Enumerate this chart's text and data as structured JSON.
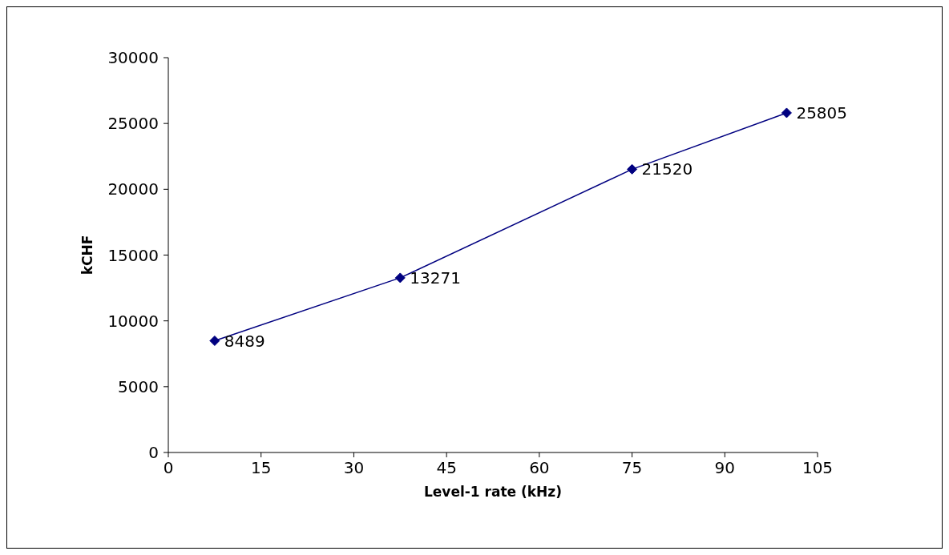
{
  "chart_data": {
    "type": "line",
    "xlabel": "Level-1 rate (kHz)",
    "ylabel": "kCHF",
    "x": [
      7.5,
      37.5,
      75,
      100
    ],
    "series": [
      {
        "color": "#000080",
        "values": [
          8489,
          13271,
          21520,
          25805
        ]
      }
    ],
    "xlim": [
      0,
      105
    ],
    "xticks": [
      0,
      15,
      30,
      45,
      60,
      75,
      90,
      105
    ],
    "ylim": [
      0,
      30000
    ],
    "yticks": [
      0,
      5000,
      10000,
      15000,
      20000,
      25000,
      30000
    ],
    "grid": false,
    "marker": "diamond",
    "line_style": "solid",
    "data_labels": true
  }
}
